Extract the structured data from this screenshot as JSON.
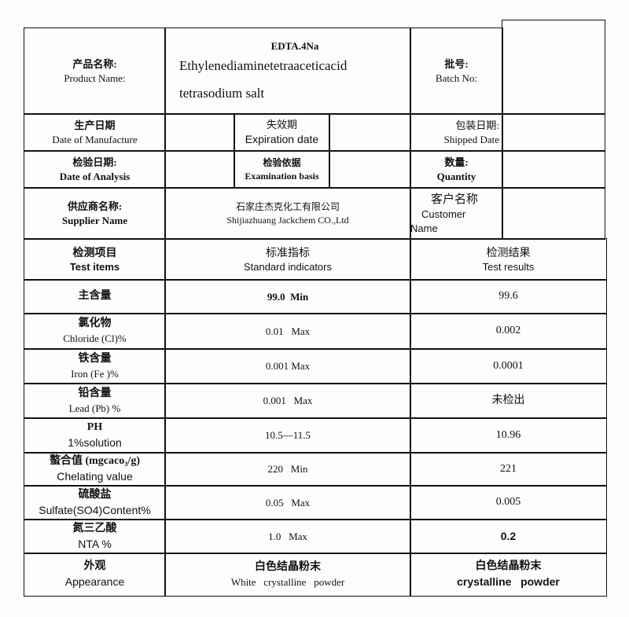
{
  "header": {
    "product_label_cn": "产品名称:",
    "product_label_en": "Product Name:",
    "product_short": "EDTA.4Na",
    "product_line1": "Ethylenediaminetetraaceticacid",
    "product_line2": "tetrasodium salt",
    "batch_label_cn": "批号:",
    "batch_label_en": "Batch No:",
    "manufacture_cn": "生产日期",
    "manufacture_en": "Date of Manufacture",
    "expiration_cn": "失效期",
    "expiration_en": "Expiration date",
    "shipped_cn": "包装日期:",
    "shipped_en": "Shipped Date",
    "analysis_cn": "检验日期:",
    "analysis_en": "Date of Analysis",
    "basis_cn": "检验依据",
    "basis_en": "Examination basis",
    "quantity_cn": "数量:",
    "quantity_en": "Quantity",
    "supplier_cn": "供应商名称:",
    "supplier_en": "Supplier Name",
    "supplier_value_cn": "石家庄杰克化工有限公司",
    "supplier_value_en": "Shijiazhuang Jackchem CO.,Ltd",
    "customer_cn": "客户名称",
    "customer_en1": "Customer",
    "customer_en2": "Name"
  },
  "table": {
    "headers": [
      {
        "cn": "检测项目",
        "en": "Test items"
      },
      {
        "cn": "标准指标",
        "en": "Standard indicators"
      },
      {
        "cn": "检测结果",
        "en": "Test results"
      }
    ],
    "rows": [
      {
        "cn": "主含量",
        "en": "",
        "standard": "99.0  Min",
        "result": "99.6"
      },
      {
        "cn": "氯化物",
        "en": "Chloride (Cl)%",
        "standard": "0.01   Max",
        "result": "0.002"
      },
      {
        "cn": "铁含量",
        "en": "Iron (Fe )%",
        "standard": "0.001 Max",
        "result": "0.0001"
      },
      {
        "cn": "铅含量",
        "en": "Lead (Pb) %",
        "standard": "0.001   Max",
        "result": "未检出"
      },
      {
        "cn": "PH",
        "en": "1%solution",
        "standard": "10.5—11.5",
        "result": "10.96"
      },
      {
        "cn": "螯合值 (mgcaco₃/g)",
        "en": "Chelating value",
        "standard": "220   Min",
        "result": "221"
      },
      {
        "cn": "硫酸盐",
        "en": "Sulfate(SO4)Content%",
        "standard": "0.05   Max",
        "result": "0.005"
      },
      {
        "cn": "氮三乙酸",
        "en": "NTA  %",
        "standard": "1.0   Max",
        "result": "0.2"
      },
      {
        "cn": "外观",
        "en": "Appearance",
        "standard_cn": "白色结晶粉末",
        "standard": "White   crystalline   powder",
        "result_cn": "白色结晶粉末",
        "result": "crystalline   powder"
      }
    ]
  }
}
